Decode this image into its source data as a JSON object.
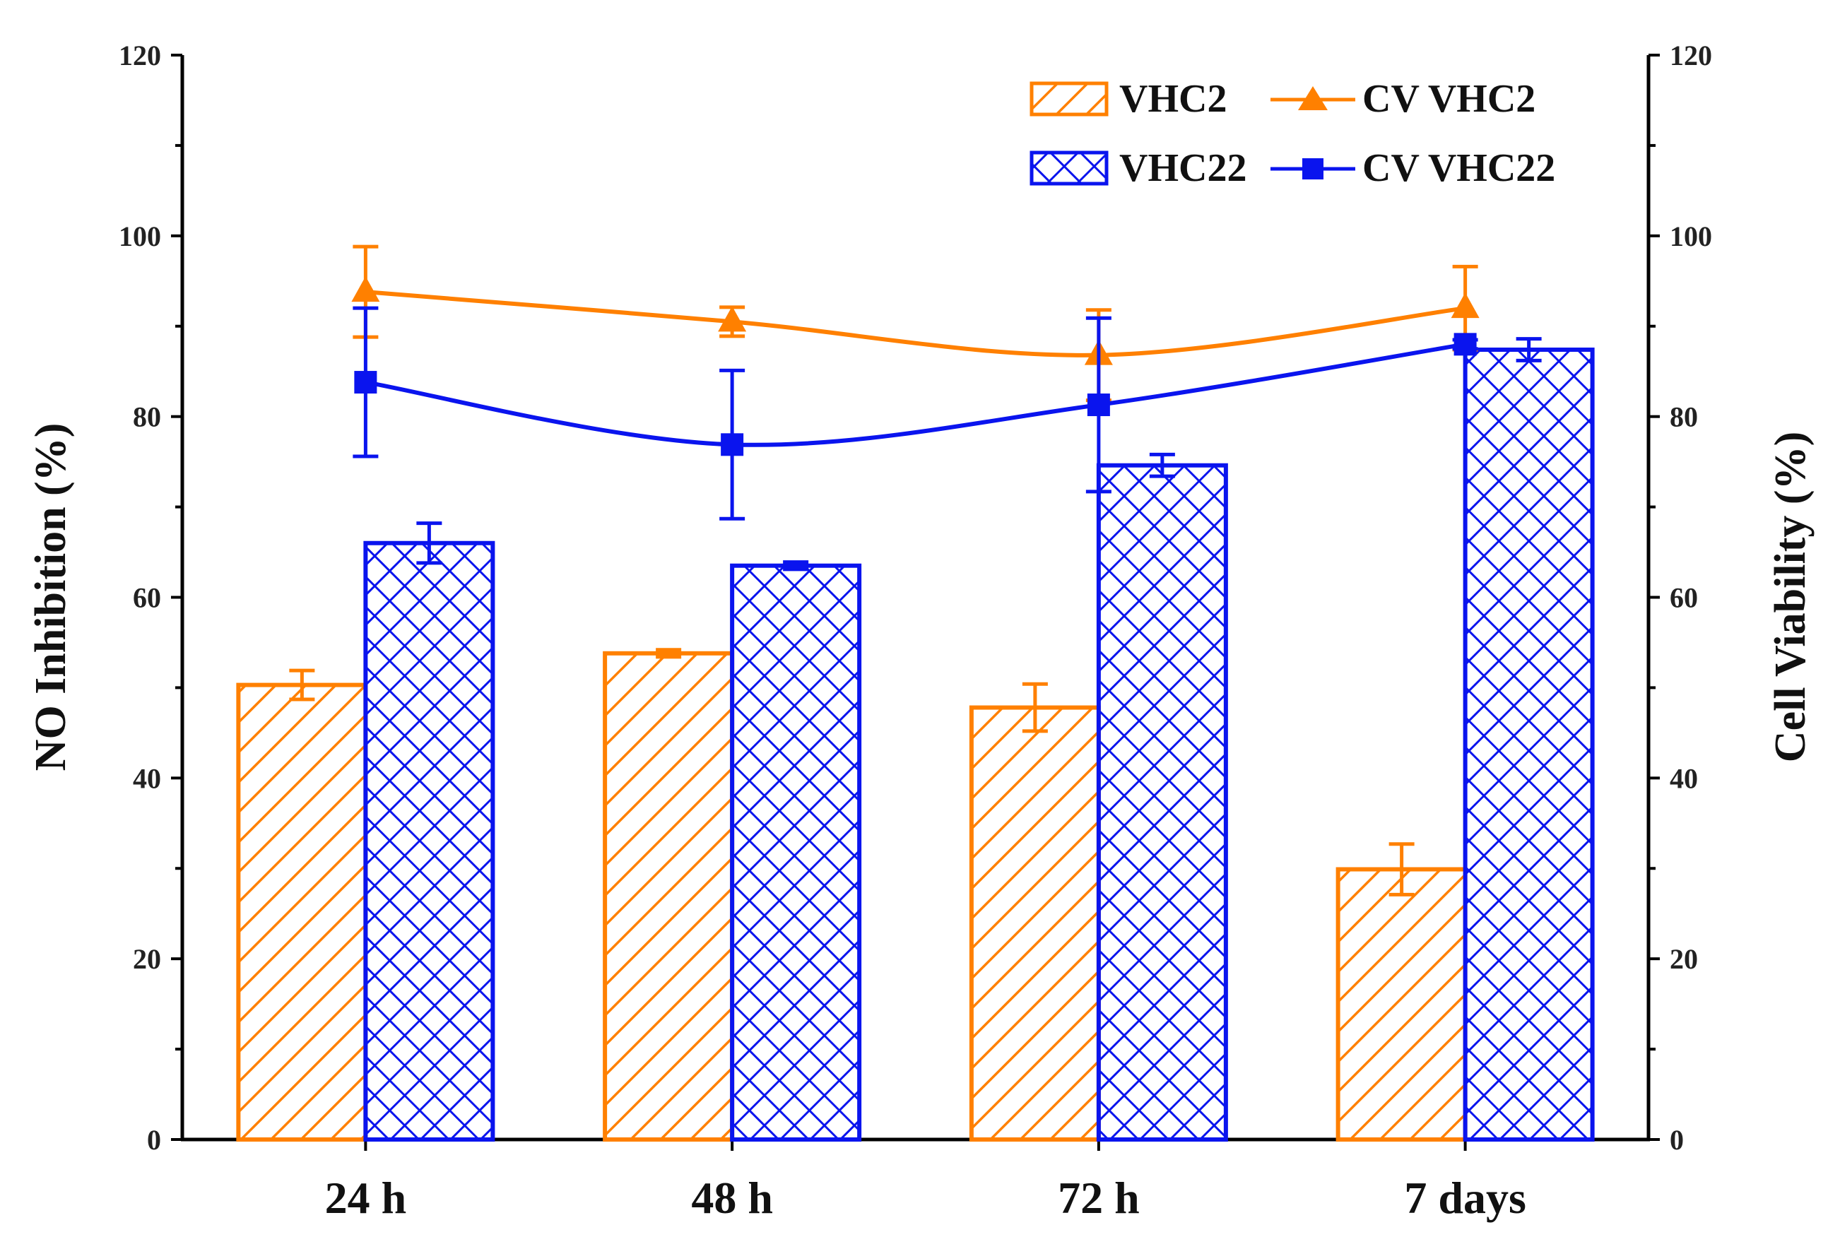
{
  "chart_data": {
    "type": "bar",
    "categories": [
      "24 h",
      "48 h",
      "72 h",
      "7 days"
    ],
    "ylabel": "NO Inhibition (%)",
    "y2label": "Cell Viability (%)",
    "ylim": [
      0,
      120
    ],
    "y2lim": [
      0,
      120
    ],
    "yticks": [
      "0",
      "20",
      "40",
      "60",
      "80",
      "100",
      "120"
    ],
    "y2ticks": [
      "0",
      "20",
      "40",
      "60",
      "80",
      "100",
      "120"
    ],
    "bar_series": [
      {
        "name": "VHC2",
        "color": "#ff8000",
        "pattern": "diagonal-hatch",
        "values": [
          50.3,
          53.8,
          47.8,
          29.9
        ],
        "errors": [
          1.6,
          0.4,
          2.6,
          2.8
        ]
      },
      {
        "name": "VHC22",
        "color": "#0a14ee",
        "pattern": "cross-hatch",
        "values": [
          66.0,
          63.5,
          74.6,
          87.4
        ],
        "errors": [
          2.2,
          0.4,
          1.2,
          1.2
        ]
      }
    ],
    "line_series": [
      {
        "name": "CV VHC2",
        "color": "#ff8000",
        "marker": "triangle",
        "axis": "right",
        "values": [
          93.8,
          90.5,
          86.8,
          92.0
        ],
        "errors": [
          5.0,
          1.6,
          5.0,
          4.6
        ]
      },
      {
        "name": "CV VHC22",
        "color": "#0a14ee",
        "marker": "square",
        "axis": "right",
        "values": [
          83.8,
          76.9,
          81.3,
          88.0
        ],
        "errors": [
          8.2,
          8.2,
          9.6,
          0.5
        ]
      }
    ],
    "legend": [
      "VHC2",
      "CV VHC2",
      "VHC22",
      "CV VHC22"
    ],
    "legend_position": "top-right",
    "grid": false
  }
}
